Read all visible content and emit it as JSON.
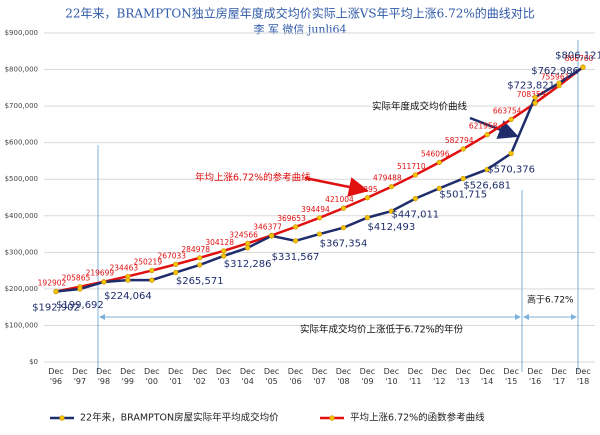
{
  "chart_data": {
    "type": "line",
    "title": "22年来，BRAMPTON独立房屋年度成交均价实际上涨VS年平均上涨6.72%的曲线对比",
    "subtitle": "李 军 微信 junli64",
    "categories": [
      "Dec '96",
      "Dec '97",
      "Dec '98",
      "Dec '99",
      "Dec '00",
      "Dec '01",
      "Dec '02",
      "Dec '03",
      "Dec '04",
      "Dec '05",
      "Dec '06",
      "Dec '07",
      "Dec '08",
      "Dec '09",
      "Dec '10",
      "Dec '11",
      "Dec '12",
      "Dec '13",
      "Dec '14",
      "Dec '15",
      "Dec '16",
      "Dec '17",
      "Dec '18"
    ],
    "series": [
      {
        "name": "22年来，BRAMPTON房屋实际年平均成交均价",
        "color": "#1f2d6b",
        "values": [
          192902,
          199692,
          219000,
          224064,
          224000,
          245000,
          265571,
          290000,
          312286,
          345000,
          331567,
          350000,
          367354,
          395000,
          412493,
          447011,
          475000,
          501715,
          526681,
          570376,
          723821,
          762986,
          806121
        ],
        "value_labels": [
          "$192,902",
          "$199,692",
          null,
          "$224,064",
          null,
          null,
          "$265,571",
          null,
          "$312,286",
          null,
          "$331,567",
          null,
          "$367,354",
          null,
          "$412,493",
          "$447,011",
          null,
          "$501,715",
          "$526,681",
          "$570,376",
          "$723,821",
          "$762,986",
          "$806,121"
        ]
      },
      {
        "name": "平均上涨6.72%的函数参考曲线",
        "color": "#e01010",
        "values": [
          192902,
          205865,
          219699,
          234463,
          250219,
          267033,
          284978,
          304128,
          324566,
          346377,
          369653,
          394494,
          421004,
          449295,
          479488,
          511710,
          546096,
          582794,
          621958,
          663754,
          708359,
          755961,
          806760
        ]
      }
    ],
    "ylim": [
      0,
      900000
    ],
    "yticks": [
      {
        "value": 0,
        "label": "$0"
      },
      {
        "value": 100000,
        "label": "$100,000"
      },
      {
        "value": 200000,
        "label": "$200,000"
      },
      {
        "value": 300000,
        "label": "$300,000"
      },
      {
        "value": 400000,
        "label": "$400,000"
      },
      {
        "value": 500000,
        "label": "$500,000"
      },
      {
        "value": 600000,
        "label": "$600,000"
      },
      {
        "value": 700000,
        "label": "$700,000"
      },
      {
        "value": 800000,
        "label": "$800,000"
      },
      {
        "value": 900000,
        "label": "$900,000"
      }
    ],
    "grid": true,
    "annotations": [
      "实际年度成交均价曲线",
      "年均上涨6.72%的参考曲线",
      "实际年成交均价上涨低于6.72%的年份",
      "高于6.72%"
    ]
  }
}
